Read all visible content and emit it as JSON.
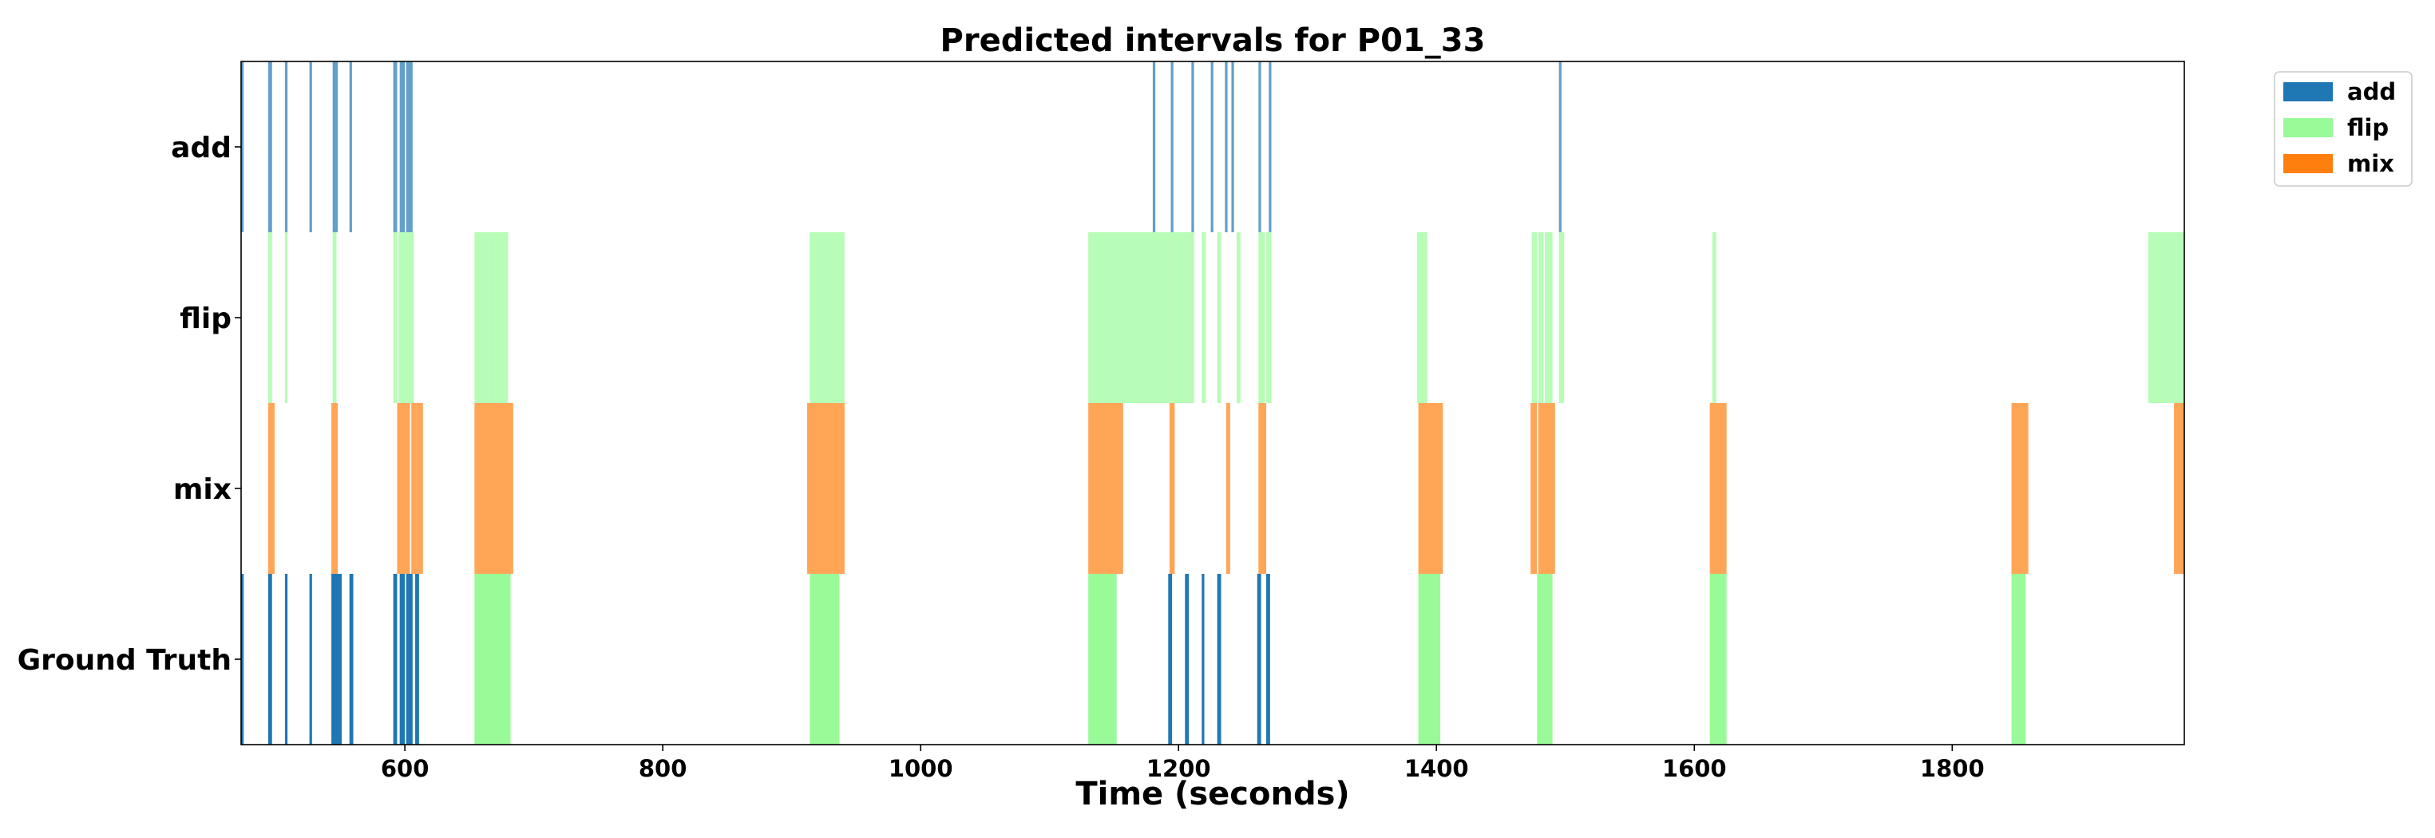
{
  "chart_data": {
    "type": "timeline",
    "title": "Predicted intervals for P01_33",
    "xlabel": "Time (seconds)",
    "xlim": [
      473,
      1980
    ],
    "xticks": [
      600,
      800,
      1000,
      1200,
      1400,
      1600,
      1800
    ],
    "rows": [
      "add",
      "flip",
      "mix",
      "Ground Truth"
    ],
    "legend": {
      "placement": "upper-right-outside",
      "entries": [
        "add",
        "flip",
        "mix"
      ]
    },
    "colors": {
      "add": "#1f77b4",
      "flip": "#98fb98",
      "mix": "#ff7f0e"
    },
    "predicted": {
      "add": [
        [
          473,
          475
        ],
        [
          494,
          497
        ],
        [
          507,
          509
        ],
        [
          526,
          528
        ],
        [
          544,
          548
        ],
        [
          557,
          559
        ],
        [
          591,
          594
        ],
        [
          596,
          600
        ],
        [
          601,
          603
        ],
        [
          603,
          606
        ],
        [
          1180,
          1182
        ],
        [
          1194,
          1196
        ],
        [
          1210,
          1212
        ],
        [
          1225,
          1227
        ],
        [
          1236,
          1238
        ],
        [
          1241,
          1243
        ],
        [
          1262,
          1264
        ],
        [
          1270,
          1272
        ],
        [
          1495,
          1497
        ]
      ],
      "flip": [
        [
          494,
          497
        ],
        [
          507,
          509
        ],
        [
          544,
          547
        ],
        [
          591,
          594
        ],
        [
          595,
          607
        ],
        [
          654,
          662
        ],
        [
          662,
          670
        ],
        [
          670,
          680
        ],
        [
          914,
          941
        ],
        [
          1130,
          1160
        ],
        [
          1160,
          1175
        ],
        [
          1175,
          1185
        ],
        [
          1185,
          1192
        ],
        [
          1192,
          1196
        ],
        [
          1196,
          1205
        ],
        [
          1205,
          1212
        ],
        [
          1218,
          1221
        ],
        [
          1230,
          1233
        ],
        [
          1245,
          1248
        ],
        [
          1262,
          1267
        ],
        [
          1268,
          1272
        ],
        [
          1385,
          1393
        ],
        [
          1474,
          1478
        ],
        [
          1479,
          1483
        ],
        [
          1484,
          1490
        ],
        [
          1495,
          1499
        ],
        [
          1614,
          1617
        ],
        [
          1952,
          1970
        ],
        [
          1970,
          1980
        ]
      ],
      "mix": [
        [
          494,
          499
        ],
        [
          543,
          548
        ],
        [
          594,
          604
        ],
        [
          605,
          609
        ],
        [
          609,
          614
        ],
        [
          654,
          684
        ],
        [
          912,
          941
        ],
        [
          1130,
          1157
        ],
        [
          1193,
          1197
        ],
        [
          1237,
          1240
        ],
        [
          1262,
          1268
        ],
        [
          1386,
          1405
        ],
        [
          1473,
          1478
        ],
        [
          1479,
          1492
        ],
        [
          1612,
          1625
        ],
        [
          1846,
          1859
        ],
        [
          1972,
          1980
        ]
      ]
    },
    "ground_truth": [
      {
        "label": "add",
        "start": 473,
        "end": 475
      },
      {
        "label": "add",
        "start": 494,
        "end": 497
      },
      {
        "label": "add",
        "start": 507,
        "end": 509
      },
      {
        "label": "add",
        "start": 526,
        "end": 528
      },
      {
        "label": "add",
        "start": 543,
        "end": 551
      },
      {
        "label": "add",
        "start": 557,
        "end": 560
      },
      {
        "label": "add",
        "start": 591,
        "end": 594
      },
      {
        "label": "add",
        "start": 596,
        "end": 600
      },
      {
        "label": "add",
        "start": 601,
        "end": 603
      },
      {
        "label": "add",
        "start": 603,
        "end": 606
      },
      {
        "label": "add",
        "start": 608,
        "end": 611
      },
      {
        "label": "flip",
        "start": 654,
        "end": 682
      },
      {
        "label": "flip",
        "start": 914,
        "end": 937
      },
      {
        "label": "flip",
        "start": 1130,
        "end": 1152
      },
      {
        "label": "add",
        "start": 1192,
        "end": 1195
      },
      {
        "label": "add",
        "start": 1205,
        "end": 1208
      },
      {
        "label": "add",
        "start": 1218,
        "end": 1220
      },
      {
        "label": "add",
        "start": 1230,
        "end": 1233
      },
      {
        "label": "add",
        "start": 1261,
        "end": 1264
      },
      {
        "label": "add",
        "start": 1268,
        "end": 1271
      },
      {
        "label": "flip",
        "start": 1386,
        "end": 1403
      },
      {
        "label": "flip",
        "start": 1478,
        "end": 1490
      },
      {
        "label": "flip",
        "start": 1612,
        "end": 1625
      },
      {
        "label": "flip",
        "start": 1846,
        "end": 1857
      }
    ]
  }
}
